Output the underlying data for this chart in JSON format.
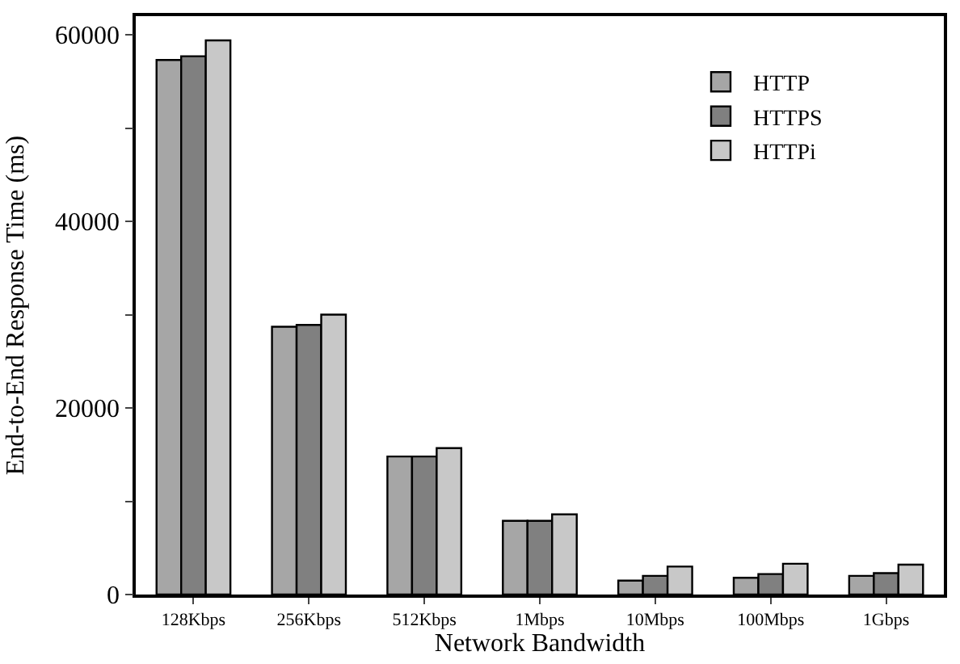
{
  "chart_data": {
    "type": "bar",
    "xlabel": "Network Bandwidth",
    "ylabel": "End-to-End Response Time (ms)",
    "categories": [
      "128Kbps",
      "256Kbps",
      "512Kbps",
      "1Mbps",
      "10Mbps",
      "100Mbps",
      "1Gbps"
    ],
    "series": [
      {
        "name": "HTTP",
        "color": "#a6a6a6",
        "values": [
          57300,
          28700,
          14800,
          7900,
          1500,
          1800,
          2000
        ]
      },
      {
        "name": "HTTPS",
        "color": "#808080",
        "values": [
          57700,
          28900,
          14800,
          7900,
          2000,
          2200,
          2300
        ]
      },
      {
        "name": "HTTPi",
        "color": "#c8c8c8",
        "values": [
          59400,
          30000,
          15700,
          8600,
          3000,
          3300,
          3200
        ]
      }
    ],
    "ylim": [
      0,
      62000
    ],
    "yticks": [
      0,
      {
        "value": 10000,
        "label": null
      },
      20000,
      {
        "value": 30000,
        "label": null
      },
      40000,
      {
        "value": 50000,
        "label": null
      },
      60000
    ],
    "legend": "top right"
  }
}
